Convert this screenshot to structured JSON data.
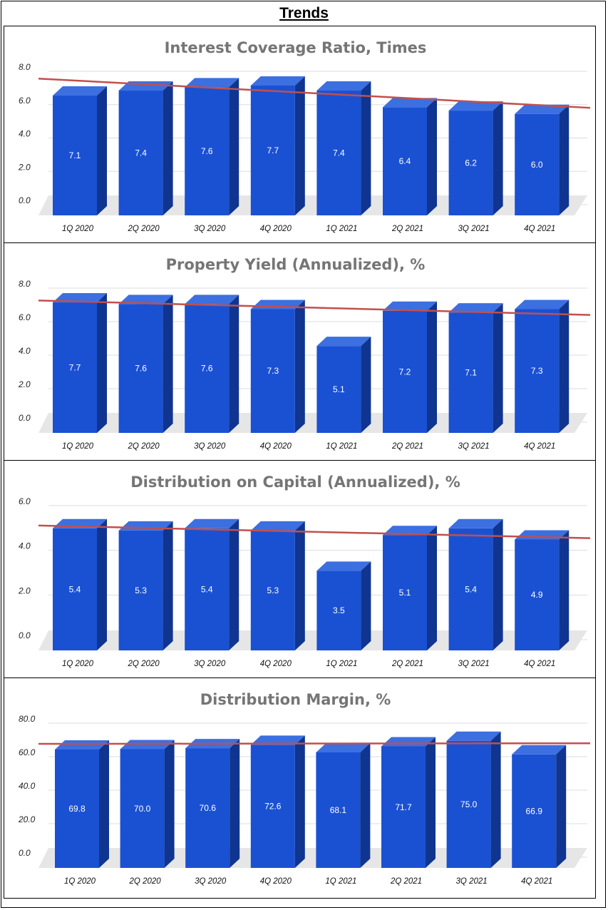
{
  "page": {
    "title": "Trends"
  },
  "colors": {
    "bar_front": "#1a51d3",
    "bar_top": "#3c6fe0",
    "bar_side": "#0f3590",
    "trendline": "#c0504d",
    "grid": "#dddddd",
    "floor": "#e6e6e6"
  },
  "chart_data": [
    {
      "type": "bar",
      "title": "Interest Coverage Ratio, Times",
      "categories": [
        "1Q 2020",
        "2Q 2020",
        "3Q 2020",
        "4Q 2020",
        "1Q 2021",
        "2Q 2021",
        "3Q 2021",
        "4Q 2021"
      ],
      "values": [
        7.1,
        7.4,
        7.6,
        7.7,
        7.4,
        6.4,
        6.2,
        6.0
      ],
      "value_labels": [
        "7.1",
        "7.4",
        "7.6",
        "7.7",
        "7.4",
        "6.4",
        "6.2",
        "6.0"
      ],
      "yticks": [
        "0.0",
        "2.0",
        "4.0",
        "6.0",
        "8.0"
      ],
      "ylim": [
        0,
        8
      ],
      "trendline": true,
      "style": "3d-bar"
    },
    {
      "type": "bar",
      "title": "Property Yield (Annualized), %",
      "categories": [
        "1Q 2020",
        "2Q 2020",
        "3Q 2020",
        "4Q 2020",
        "1Q 2021",
        "2Q 2021",
        "3Q 2021",
        "4Q 2021"
      ],
      "values": [
        7.7,
        7.6,
        7.6,
        7.3,
        5.1,
        7.2,
        7.1,
        7.3
      ],
      "value_labels": [
        "7.7",
        "7.6",
        "7.6",
        "7.3",
        "5.1",
        "7.2",
        "7.1",
        "7.3"
      ],
      "yticks": [
        "0.0",
        "2.0",
        "4.0",
        "6.0",
        "8.0"
      ],
      "ylim": [
        0,
        8
      ],
      "trendline": true,
      "style": "3d-bar"
    },
    {
      "type": "bar",
      "title": "Distribution on Capital (Annualized), %",
      "categories": [
        "1Q 2020",
        "2Q 2020",
        "3Q 2020",
        "4Q 2020",
        "1Q 2021",
        "2Q 2021",
        "3Q 2021",
        "4Q 2021"
      ],
      "values": [
        5.4,
        5.3,
        5.4,
        5.3,
        3.5,
        5.1,
        5.4,
        4.9
      ],
      "value_labels": [
        "5.4",
        "5.3",
        "5.4",
        "5.3",
        "3.5",
        "5.1",
        "5.4",
        "4.9"
      ],
      "yticks": [
        "0.0",
        "2.0",
        "4.0",
        "6.0"
      ],
      "ylim": [
        0,
        6
      ],
      "trendline": true,
      "style": "3d-bar"
    },
    {
      "type": "bar",
      "title": "Distribution Margin, %",
      "categories": [
        "1Q 2020",
        "2Q 2020",
        "3Q 2020",
        "4Q 2020",
        "1Q 2021",
        "2Q 2021",
        "3Q 2021",
        "4Q 2021"
      ],
      "values": [
        69.8,
        70.0,
        70.6,
        72.6,
        68.1,
        71.7,
        75.0,
        66.9
      ],
      "value_labels": [
        "69.8",
        "70.0",
        "70.6",
        "72.6",
        "68.1",
        "71.7",
        "75.0",
        "66.9"
      ],
      "yticks": [
        "0.0",
        "20.0",
        "40.0",
        "60.0",
        "80.0"
      ],
      "ylim": [
        0,
        80
      ],
      "trendline": true,
      "style": "3d-bar"
    }
  ]
}
